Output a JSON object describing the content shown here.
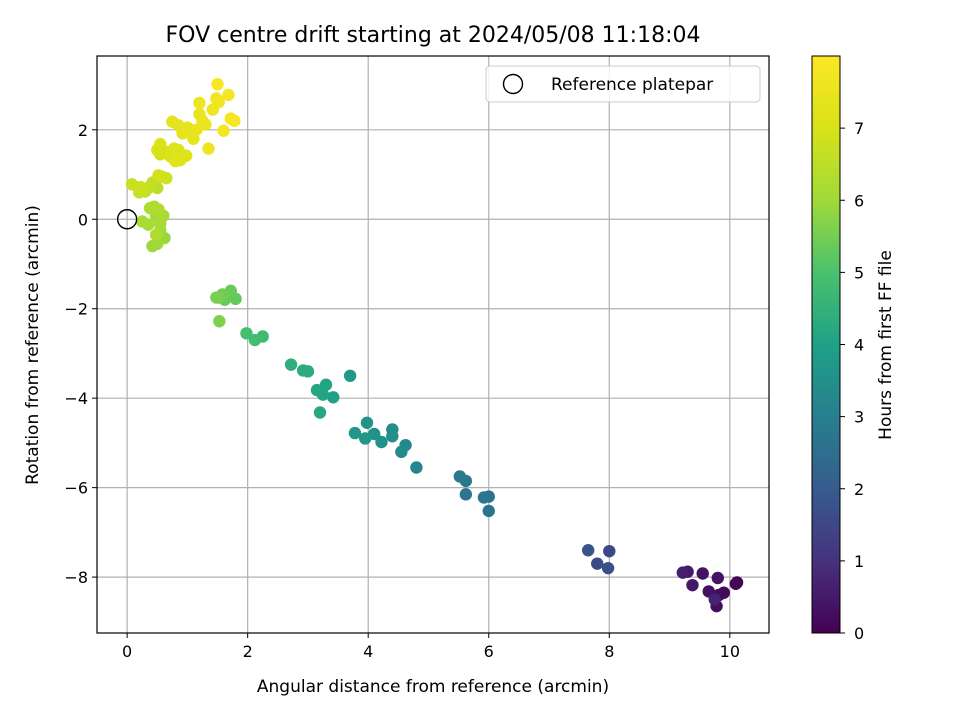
{
  "chart_data": {
    "type": "scatter",
    "title": "FOV centre drift starting at 2024/05/08 11:18:04",
    "xlabel": "Angular distance from reference (arcmin)",
    "ylabel": "Rotation from reference (arcmin)",
    "xlim": [
      -0.5,
      10.65
    ],
    "ylim": [
      -9.25,
      3.65
    ],
    "xticks": [
      0,
      2,
      4,
      6,
      8,
      10
    ],
    "yticks": [
      -8,
      -6,
      -4,
      -2,
      0,
      2
    ],
    "grid": true,
    "legend": {
      "position": "top-right",
      "entries": [
        "Reference platepar"
      ]
    },
    "colorbar": {
      "label": "Hours from first FF file",
      "ticks": [
        0,
        1,
        2,
        3,
        4,
        5,
        6,
        7
      ],
      "range": [
        0,
        8
      ],
      "colormap": "viridis"
    },
    "reference_point": {
      "x": 0,
      "y": 0
    },
    "series": [
      {
        "points": [
          {
            "x": 10.12,
            "y": -8.12,
            "h": 0.05
          },
          {
            "x": 10.1,
            "y": -8.15,
            "h": 0.1
          },
          {
            "x": 9.82,
            "y": -8.4,
            "h": 0.15
          },
          {
            "x": 9.9,
            "y": -8.35,
            "h": 0.2
          },
          {
            "x": 9.78,
            "y": -8.65,
            "h": 0.25
          },
          {
            "x": 9.65,
            "y": -8.32,
            "h": 0.3
          },
          {
            "x": 9.55,
            "y": -7.92,
            "h": 0.35
          },
          {
            "x": 9.8,
            "y": -8.02,
            "h": 0.4
          },
          {
            "x": 9.38,
            "y": -8.18,
            "h": 0.45
          },
          {
            "x": 9.3,
            "y": -7.88,
            "h": 0.5
          },
          {
            "x": 9.22,
            "y": -7.9,
            "h": 0.6
          },
          {
            "x": 9.75,
            "y": -8.5,
            "h": 0.7
          },
          {
            "x": 8.0,
            "y": -7.42,
            "h": 1.5
          },
          {
            "x": 7.8,
            "y": -7.7,
            "h": 1.6
          },
          {
            "x": 7.98,
            "y": -7.8,
            "h": 1.7
          },
          {
            "x": 7.65,
            "y": -7.4,
            "h": 1.8
          },
          {
            "x": 6.0,
            "y": -6.2,
            "h": 2.6
          },
          {
            "x": 6.0,
            "y": -6.52,
            "h": 2.65
          },
          {
            "x": 5.92,
            "y": -6.22,
            "h": 2.7
          },
          {
            "x": 5.62,
            "y": -6.15,
            "h": 2.75
          },
          {
            "x": 5.62,
            "y": -5.85,
            "h": 2.8
          },
          {
            "x": 5.52,
            "y": -5.75,
            "h": 2.85
          },
          {
            "x": 4.8,
            "y": -5.55,
            "h": 3.2
          },
          {
            "x": 4.62,
            "y": -5.05,
            "h": 3.3
          },
          {
            "x": 4.55,
            "y": -5.2,
            "h": 3.35
          },
          {
            "x": 4.4,
            "y": -4.7,
            "h": 3.4
          },
          {
            "x": 4.4,
            "y": -4.85,
            "h": 3.45
          },
          {
            "x": 4.22,
            "y": -4.98,
            "h": 3.5
          },
          {
            "x": 4.1,
            "y": -4.8,
            "h": 3.55
          },
          {
            "x": 3.98,
            "y": -4.55,
            "h": 3.6
          },
          {
            "x": 3.95,
            "y": -4.9,
            "h": 3.65
          },
          {
            "x": 3.78,
            "y": -4.78,
            "h": 3.7
          },
          {
            "x": 3.7,
            "y": -3.5,
            "h": 3.75
          },
          {
            "x": 3.42,
            "y": -3.98,
            "h": 4.0
          },
          {
            "x": 3.3,
            "y": -3.7,
            "h": 4.05
          },
          {
            "x": 3.25,
            "y": -3.92,
            "h": 4.1
          },
          {
            "x": 3.15,
            "y": -3.82,
            "h": 4.15
          },
          {
            "x": 3.2,
            "y": -4.32,
            "h": 4.2
          },
          {
            "x": 3.0,
            "y": -3.4,
            "h": 4.3
          },
          {
            "x": 2.92,
            "y": -3.38,
            "h": 4.35
          },
          {
            "x": 2.72,
            "y": -3.25,
            "h": 4.4
          },
          {
            "x": 2.25,
            "y": -2.62,
            "h": 4.8
          },
          {
            "x": 2.12,
            "y": -2.7,
            "h": 4.85
          },
          {
            "x": 1.98,
            "y": -2.55,
            "h": 4.9
          },
          {
            "x": 1.8,
            "y": -1.78,
            "h": 5.3
          },
          {
            "x": 1.72,
            "y": -1.6,
            "h": 5.35
          },
          {
            "x": 1.62,
            "y": -1.8,
            "h": 5.4
          },
          {
            "x": 1.58,
            "y": -1.68,
            "h": 5.45
          },
          {
            "x": 1.52,
            "y": -1.75,
            "h": 5.5
          },
          {
            "x": 1.48,
            "y": -1.75,
            "h": 5.55
          },
          {
            "x": 1.53,
            "y": -2.28,
            "h": 5.6
          },
          {
            "x": 0.62,
            "y": -0.42,
            "h": 5.9
          },
          {
            "x": 0.42,
            "y": -0.6,
            "h": 5.95
          },
          {
            "x": 0.5,
            "y": -0.55,
            "h": 6.0
          },
          {
            "x": 0.55,
            "y": -0.25,
            "h": 6.0
          },
          {
            "x": 0.48,
            "y": 0.08,
            "h": 6.05
          },
          {
            "x": 0.55,
            "y": -0.1,
            "h": 6.1
          },
          {
            "x": 0.35,
            "y": -0.12,
            "h": 6.1
          },
          {
            "x": 0.6,
            "y": 0.08,
            "h": 6.15
          },
          {
            "x": 0.25,
            "y": -0.05,
            "h": 6.15
          },
          {
            "x": 0.45,
            "y": 0.28,
            "h": 6.2
          },
          {
            "x": 0.38,
            "y": 0.25,
            "h": 6.25
          },
          {
            "x": 0.52,
            "y": 0.22,
            "h": 6.3
          },
          {
            "x": 0.48,
            "y": -0.35,
            "h": 6.3
          },
          {
            "x": 0.5,
            "y": 0.7,
            "h": 6.5
          },
          {
            "x": 0.42,
            "y": 0.82,
            "h": 6.55
          },
          {
            "x": 0.35,
            "y": 0.7,
            "h": 6.6
          },
          {
            "x": 0.3,
            "y": 0.62,
            "h": 6.65
          },
          {
            "x": 0.2,
            "y": 0.6,
            "h": 6.7
          },
          {
            "x": 0.08,
            "y": 0.78,
            "h": 6.7
          },
          {
            "x": 0.22,
            "y": 0.72,
            "h": 6.75
          },
          {
            "x": 0.58,
            "y": 0.95,
            "h": 6.8
          },
          {
            "x": 0.65,
            "y": 0.92,
            "h": 6.85
          },
          {
            "x": 0.52,
            "y": 0.98,
            "h": 6.9
          },
          {
            "x": 0.55,
            "y": 1.45,
            "h": 6.95
          },
          {
            "x": 0.62,
            "y": 1.52,
            "h": 7.0
          },
          {
            "x": 0.5,
            "y": 1.55,
            "h": 7.0
          },
          {
            "x": 0.55,
            "y": 1.68,
            "h": 7.05
          },
          {
            "x": 0.72,
            "y": 1.4,
            "h": 7.05
          },
          {
            "x": 0.78,
            "y": 1.58,
            "h": 7.1
          },
          {
            "x": 0.85,
            "y": 1.55,
            "h": 7.1
          },
          {
            "x": 0.92,
            "y": 1.4,
            "h": 7.15
          },
          {
            "x": 0.98,
            "y": 1.42,
            "h": 7.15
          },
          {
            "x": 0.88,
            "y": 1.32,
            "h": 7.2
          },
          {
            "x": 0.8,
            "y": 1.3,
            "h": 7.2
          },
          {
            "x": 0.75,
            "y": 2.18,
            "h": 7.3
          },
          {
            "x": 0.85,
            "y": 2.1,
            "h": 7.3
          },
          {
            "x": 0.92,
            "y": 1.92,
            "h": 7.35
          },
          {
            "x": 1.0,
            "y": 2.05,
            "h": 7.35
          },
          {
            "x": 1.05,
            "y": 1.92,
            "h": 7.4
          },
          {
            "x": 1.1,
            "y": 1.8,
            "h": 7.4
          },
          {
            "x": 1.15,
            "y": 2.0,
            "h": 7.45
          },
          {
            "x": 1.2,
            "y": 2.35,
            "h": 7.45
          },
          {
            "x": 1.25,
            "y": 2.2,
            "h": 7.5
          },
          {
            "x": 1.3,
            "y": 2.12,
            "h": 7.5
          },
          {
            "x": 1.35,
            "y": 1.58,
            "h": 7.55
          },
          {
            "x": 1.2,
            "y": 2.6,
            "h": 7.55
          },
          {
            "x": 1.42,
            "y": 2.45,
            "h": 7.6
          },
          {
            "x": 1.48,
            "y": 2.7,
            "h": 7.65
          },
          {
            "x": 1.52,
            "y": 2.62,
            "h": 7.65
          },
          {
            "x": 1.6,
            "y": 1.98,
            "h": 7.7
          },
          {
            "x": 1.68,
            "y": 2.78,
            "h": 7.75
          },
          {
            "x": 1.72,
            "y": 2.25,
            "h": 7.75
          },
          {
            "x": 1.78,
            "y": 2.2,
            "h": 7.8
          },
          {
            "x": 1.5,
            "y": 3.02,
            "h": 7.85
          }
        ]
      }
    ]
  }
}
